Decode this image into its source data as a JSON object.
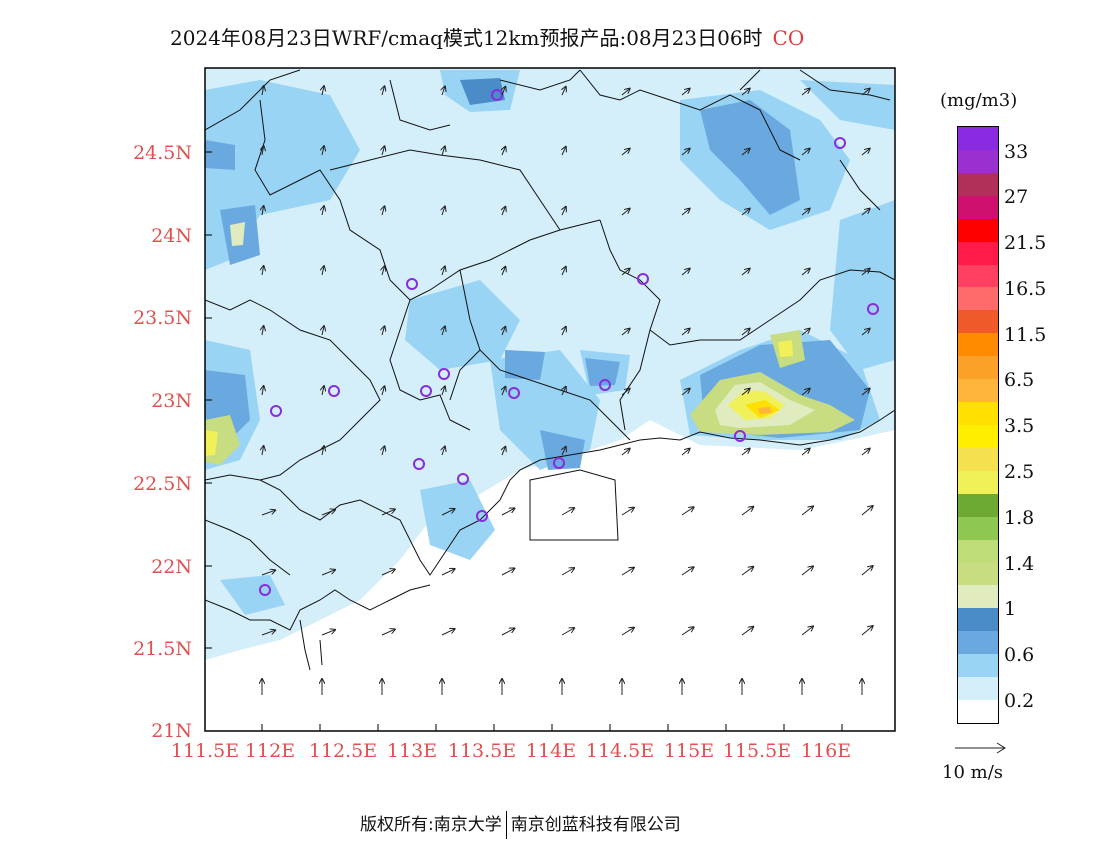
{
  "title": {
    "text": "2024年08月23日WRF/cmaq模式12km预报产品:08月23日06时",
    "species": "CO"
  },
  "axes": {
    "y_ticks": [
      "24.5N",
      "24N",
      "23.5N",
      "23N",
      "22.5N",
      "22N",
      "21.5N",
      "21N"
    ],
    "x_ticks": [
      "111.5E",
      "112E",
      "112.5E",
      "113E",
      "113.5E",
      "114E",
      "114.5E",
      "115E",
      "115.5E",
      "116E"
    ]
  },
  "colorbar": {
    "unit": "(mg/m3)",
    "colors": [
      "#8a2be2",
      "#9b30d0",
      "#b0305a",
      "#d0106e",
      "#ff0000",
      "#ff1a4a",
      "#ff4060",
      "#ff6a6a",
      "#f05a28",
      "#ff8c00",
      "#fba12a",
      "#ffb43c",
      "#ffe000",
      "#ffee00",
      "#f5e050",
      "#f0f058",
      "#6eaa32",
      "#8ec850",
      "#bedd78",
      "#c8dc82",
      "#e0ecc0",
      "#4a8cc8",
      "#6aa8e0",
      "#9ad4f4",
      "#d4eefa",
      "#ffffff"
    ],
    "labels": [
      "33",
      "27",
      "21.5",
      "16.5",
      "11.5",
      "6.5",
      "3.5",
      "2.5",
      "1.8",
      "1.4",
      "1",
      "0.6",
      "0.2"
    ]
  },
  "wind_reference": {
    "label": "10 m/s"
  },
  "footer": {
    "left": "版权所有:南京大学",
    "right": "南京创蓝科技有限公司"
  }
}
